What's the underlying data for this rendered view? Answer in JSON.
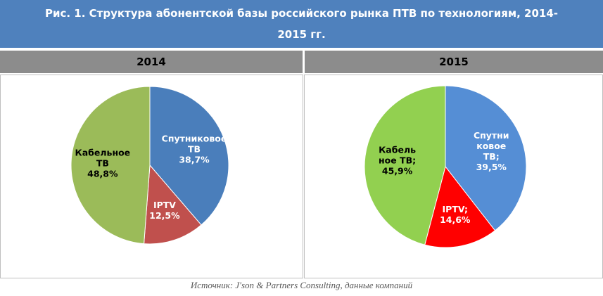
{
  "title": "Рис. 1. Структура абонентской базы российского рынка ПТВ по технологиям, 2014-2015 гг.",
  "source": "Источник: J'son & Partners Consulting, данные компаний",
  "chart_data": [
    {
      "type": "pie",
      "title": "2014",
      "categories": [
        "Спутниковое ТВ",
        "IPTV",
        "Кабельное ТВ"
      ],
      "values": [
        38.7,
        12.5,
        48.8
      ],
      "value_labels": [
        "38,7%",
        "12,5%",
        "48,8%"
      ],
      "colors": [
        "#4a7ebb",
        "#c0504d",
        "#9bbb59"
      ]
    },
    {
      "type": "pie",
      "title": "2015",
      "categories": [
        "Спутниковое ТВ;",
        "IPTV;",
        "Кабельное ТВ;"
      ],
      "values": [
        39.5,
        14.6,
        45.9
      ],
      "value_labels": [
        "39,5%",
        "14,6%",
        "45,9%"
      ],
      "colors": [
        "#558ed5",
        "#ff0000",
        "#92d050"
      ]
    }
  ]
}
